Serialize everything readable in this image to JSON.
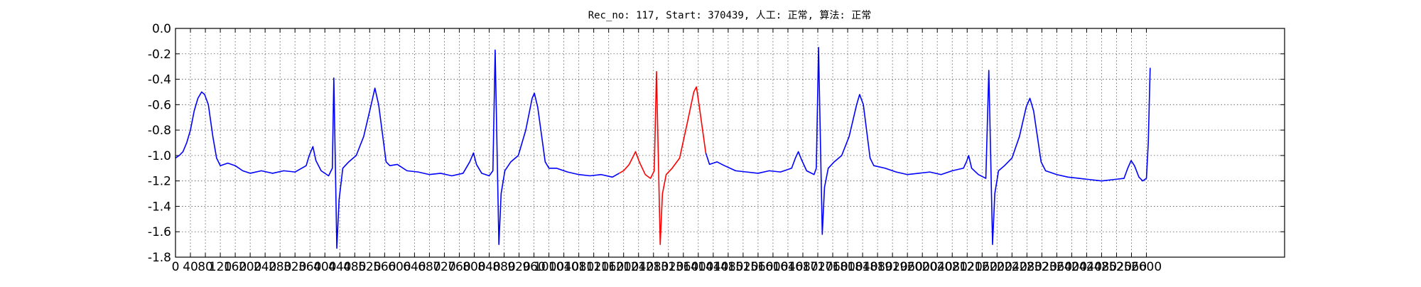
{
  "chart_data": {
    "type": "line",
    "title": "Rec_no: 117, Start: 370439, 人工: 正常, 算法: 正常",
    "xlim": [
      0,
      2970
    ],
    "ylim": [
      -1.8,
      0
    ],
    "xticks": [
      0,
      40,
      80,
      120,
      160,
      200,
      240,
      280,
      320,
      360,
      400,
      440,
      480,
      520,
      560,
      600,
      640,
      680,
      720,
      760,
      800,
      840,
      880,
      920,
      960,
      1000,
      1040,
      1080,
      1120,
      1160,
      1200,
      1240,
      1280,
      1320,
      1360,
      1400,
      1440,
      1480,
      1520,
      1560,
      1600,
      1640,
      1680,
      1720,
      1760,
      1800,
      1840,
      1880,
      1920,
      1960,
      2000,
      2040,
      2080,
      2120,
      2160,
      2200,
      2240,
      2280,
      2320,
      2360,
      2400,
      2440,
      2480,
      2520,
      2560,
      2600
    ],
    "yticks": [
      {
        "value": 0,
        "label": "0.0"
      },
      -0.2,
      -0.4,
      -0.6,
      -0.8,
      {
        "value": -1,
        "label": "-1.0"
      },
      -1.2,
      -1.4,
      -1.6,
      -1.8
    ],
    "grid": true,
    "series": [
      {
        "color": "#0000ff",
        "x": [
          0,
          10,
          20,
          30,
          40,
          50,
          60,
          70,
          78,
          88,
          100,
          110,
          120,
          140,
          160,
          180,
          200,
          230,
          260,
          290,
          320,
          350,
          358,
          368,
          376,
          390,
          410,
          420,
          424,
          432,
          438,
          448,
          464,
          484,
          504,
          524,
          534,
          544,
          564,
          574,
          594,
          620,
          650,
          680,
          710,
          740,
          770,
          788,
          798,
          806,
          820,
          840,
          850,
          856,
          866,
          872,
          882,
          898,
          918,
          938,
          955,
          961,
          970,
          990,
          1000,
          1020,
          1050,
          1080,
          1110,
          1140,
          1170,
          1188
        ],
        "values": [
          -1.02,
          -1.0,
          -0.97,
          -0.9,
          -0.8,
          -0.65,
          -0.55,
          -0.5,
          -0.52,
          -0.6,
          -0.85,
          -1.02,
          -1.08,
          -1.06,
          -1.08,
          -1.12,
          -1.14,
          -1.12,
          -1.14,
          -1.12,
          -1.13,
          -1.08,
          -1.0,
          -0.93,
          -1.04,
          -1.12,
          -1.16,
          -1.1,
          -0.39,
          -1.73,
          -1.35,
          -1.1,
          -1.05,
          -1.0,
          -0.85,
          -0.6,
          -0.47,
          -0.6,
          -1.05,
          -1.08,
          -1.07,
          -1.12,
          -1.13,
          -1.15,
          -1.14,
          -1.16,
          -1.14,
          -1.05,
          -0.98,
          -1.07,
          -1.14,
          -1.16,
          -1.12,
          -0.17,
          -1.7,
          -1.3,
          -1.12,
          -1.05,
          -1.0,
          -0.8,
          -0.55,
          -0.51,
          -0.62,
          -1.05,
          -1.1,
          -1.1,
          -1.13,
          -1.15,
          -1.16,
          -1.15,
          -1.17,
          -1.14
        ]
      },
      {
        "color": "#ff0000",
        "x": [
          1188,
          1200,
          1215,
          1232,
          1242,
          1258,
          1272,
          1282,
          1288,
          1298,
          1304,
          1314,
          1330,
          1350,
          1370,
          1388,
          1395,
          1402,
          1420
        ],
        "values": [
          -1.14,
          -1.12,
          -1.07,
          -0.97,
          -1.05,
          -1.15,
          -1.18,
          -1.12,
          -0.34,
          -1.7,
          -1.3,
          -1.15,
          -1.1,
          -1.02,
          -0.75,
          -0.5,
          -0.46,
          -0.6,
          -0.98
        ]
      },
      {
        "color": "#0000ff",
        "x": [
          1420,
          1430,
          1450,
          1470,
          1500,
          1530,
          1560,
          1590,
          1620,
          1650,
          1660,
          1668,
          1676,
          1690,
          1710,
          1716,
          1722,
          1732,
          1738,
          1748,
          1764,
          1784,
          1804,
          1824,
          1832,
          1842,
          1860,
          1870,
          1900,
          1930,
          1960,
          1990,
          2020,
          2050,
          2080,
          2110,
          2118,
          2124,
          2132,
          2150,
          2170,
          2178,
          2188,
          2194,
          2204,
          2220,
          2240,
          2260,
          2278,
          2288,
          2298,
          2318,
          2330,
          2360,
          2390,
          2420,
          2450,
          2480,
          2510,
          2540,
          2550,
          2559,
          2568,
          2580,
          2590,
          2600,
          2605,
          2610
        ],
        "values": [
          -0.98,
          -1.07,
          -1.05,
          -1.08,
          -1.12,
          -1.13,
          -1.14,
          -1.12,
          -1.13,
          -1.1,
          -1.02,
          -0.97,
          -1.03,
          -1.12,
          -1.15,
          -1.1,
          -0.15,
          -1.62,
          -1.25,
          -1.1,
          -1.05,
          -1.0,
          -0.85,
          -0.6,
          -0.52,
          -0.6,
          -1.02,
          -1.08,
          -1.1,
          -1.13,
          -1.15,
          -1.14,
          -1.13,
          -1.15,
          -1.12,
          -1.1,
          -1.05,
          -1.0,
          -1.1,
          -1.15,
          -1.18,
          -0.33,
          -1.7,
          -1.3,
          -1.12,
          -1.08,
          -1.02,
          -0.85,
          -0.62,
          -0.55,
          -0.65,
          -1.05,
          -1.12,
          -1.15,
          -1.17,
          -1.18,
          -1.19,
          -1.2,
          -1.19,
          -1.18,
          -1.1,
          -1.04,
          -1.08,
          -1.17,
          -1.2,
          -1.18,
          -0.9,
          -0.31
        ]
      }
    ]
  }
}
